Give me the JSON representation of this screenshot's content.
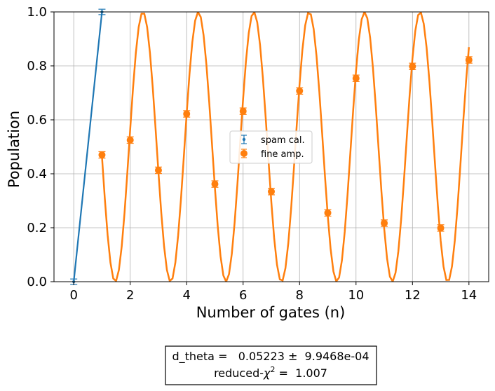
{
  "chart_data": {
    "type": "scatter",
    "xlabel": "Number of gates (n)",
    "ylabel": "Population",
    "xlim": [
      -0.7,
      14.7
    ],
    "ylim": [
      0,
      1
    ],
    "x_ticks": [
      0,
      2,
      4,
      6,
      8,
      10,
      12,
      14
    ],
    "x_tick_labels": [
      "0",
      "2",
      "4",
      "6",
      "8",
      "10",
      "12",
      "14"
    ],
    "y_ticks": [
      0,
      0.2,
      0.4,
      0.6,
      0.8,
      1.0
    ],
    "y_tick_labels": [
      "0.0",
      "0.2",
      "0.4",
      "0.6",
      "0.8",
      "1.0"
    ],
    "grid": true,
    "legend_position": "center",
    "series": [
      {
        "name": "spam cal.",
        "color": "#1f77b4",
        "marker": "small-dot",
        "x": [
          0,
          1
        ],
        "y": [
          0.0,
          1.0
        ],
        "yerr": [
          0.01,
          0.01
        ],
        "fit_line": {
          "x": [
            0,
            1
          ],
          "y": [
            0.0,
            1.0
          ]
        }
      },
      {
        "name": "fine amp.",
        "color": "#ff7f0e",
        "marker": "circle",
        "x": [
          1,
          2,
          3,
          4,
          5,
          6,
          7,
          8,
          9,
          10,
          11,
          12,
          13,
          14
        ],
        "y": [
          0.47,
          0.525,
          0.413,
          0.622,
          0.362,
          0.632,
          0.334,
          0.707,
          0.255,
          0.754,
          0.217,
          0.798,
          0.199,
          0.822
        ],
        "yerr": [
          0.012,
          0.012,
          0.012,
          0.012,
          0.012,
          0.012,
          0.012,
          0.012,
          0.012,
          0.012,
          0.012,
          0.012,
          0.012,
          0.012
        ],
        "fit_curve": {
          "function": "0.5 + 0.5*cos(3.2*(n - 2.45))",
          "x_range": [
            1,
            14
          ]
        }
      }
    ]
  },
  "fit_result": {
    "line1": "d_theta =   0.05223 ±  9.9468e-04",
    "line2_prefix": "reduced-",
    "line2_chi": "χ",
    "line2_sup": "2",
    "line2_suffix": " =  1.007"
  }
}
